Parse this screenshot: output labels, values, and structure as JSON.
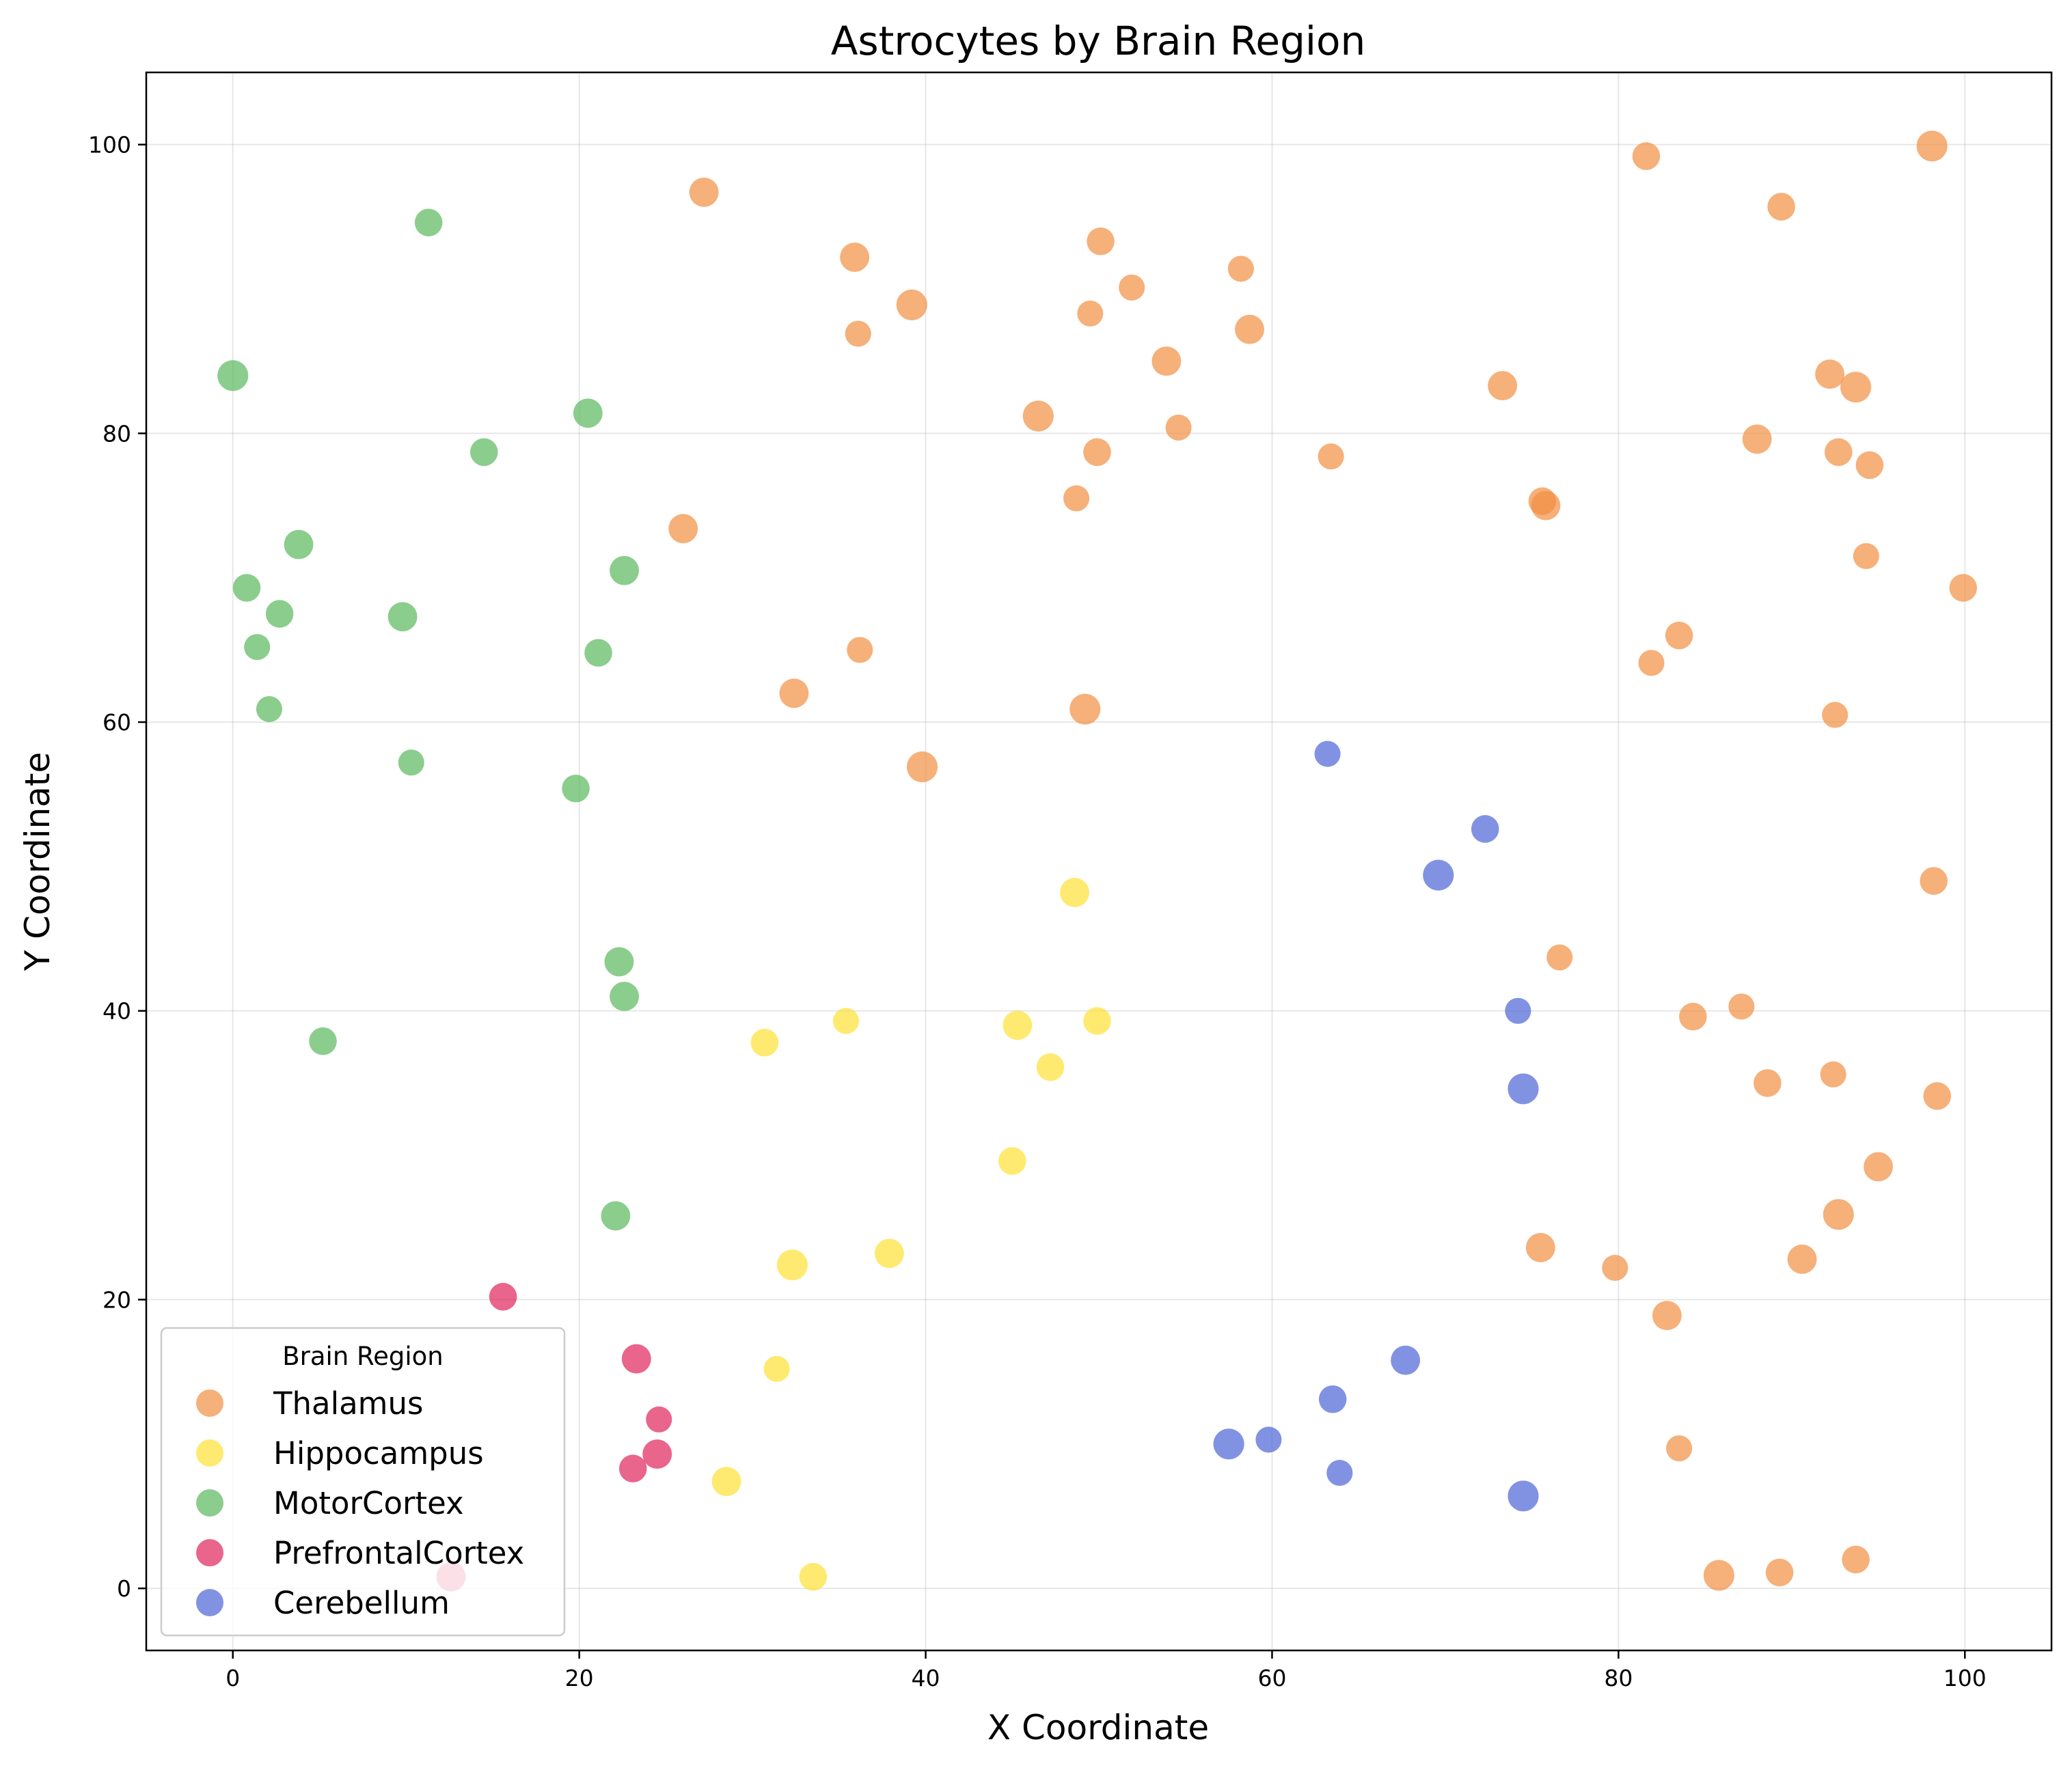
{
  "chart_data": {
    "type": "scatter",
    "title": "Astrocytes by Brain Region",
    "xlabel": "X Coordinate",
    "ylabel": "Y Coordinate",
    "xlim": [
      -5,
      105
    ],
    "ylim": [
      -4.3,
      105
    ],
    "xticks": [
      0,
      20,
      40,
      60,
      80,
      100
    ],
    "yticks": [
      0,
      20,
      40,
      60,
      80,
      100
    ],
    "grid": true,
    "legend": {
      "title": "Brain Region",
      "placement": "lower-left"
    },
    "series": [
      {
        "name": "Thalamus",
        "color": "#f28e42",
        "points": [
          [
            27.2,
            96.7
          ],
          [
            35.9,
            92.2
          ],
          [
            36.1,
            86.9
          ],
          [
            39.2,
            88.9
          ],
          [
            50.1,
            93.3
          ],
          [
            49.5,
            88.3
          ],
          [
            51.9,
            90.1
          ],
          [
            58.2,
            91.4
          ],
          [
            58.7,
            87.2
          ],
          [
            53.9,
            85.0
          ],
          [
            54.6,
            80.4
          ],
          [
            46.5,
            81.2
          ],
          [
            49.9,
            78.7
          ],
          [
            48.7,
            75.5
          ],
          [
            63.4,
            78.4
          ],
          [
            73.3,
            83.3
          ],
          [
            75.6,
            75.3
          ],
          [
            75.8,
            75.0
          ],
          [
            81.6,
            99.2
          ],
          [
            89.4,
            95.7
          ],
          [
            98.1,
            99.9
          ],
          [
            92.2,
            84.1
          ],
          [
            93.7,
            83.2
          ],
          [
            88.0,
            79.6
          ],
          [
            92.7,
            78.7
          ],
          [
            94.5,
            77.8
          ],
          [
            94.3,
            71.5
          ],
          [
            99.9,
            69.3
          ],
          [
            26.0,
            73.4
          ],
          [
            32.4,
            62.0
          ],
          [
            36.2,
            65.0
          ],
          [
            49.2,
            60.9
          ],
          [
            39.8,
            56.9
          ],
          [
            83.5,
            66.0
          ],
          [
            81.9,
            64.1
          ],
          [
            92.5,
            60.5
          ],
          [
            98.2,
            49.0
          ],
          [
            76.6,
            43.7
          ],
          [
            84.3,
            39.6
          ],
          [
            87.1,
            40.3
          ],
          [
            88.6,
            35.0
          ],
          [
            92.4,
            35.6
          ],
          [
            98.4,
            34.1
          ],
          [
            95.0,
            29.2
          ],
          [
            92.7,
            25.9
          ],
          [
            90.6,
            22.8
          ],
          [
            75.5,
            23.6
          ],
          [
            79.8,
            22.2
          ],
          [
            82.8,
            18.9
          ],
          [
            83.5,
            9.7
          ],
          [
            85.8,
            0.9
          ],
          [
            89.3,
            1.1
          ],
          [
            93.7,
            2.0
          ]
        ],
        "sizes": [
          380,
          380,
          300,
          420,
          340,
          300,
          300,
          300,
          380,
          380,
          300,
          420,
          340,
          300,
          300,
          380,
          340,
          380,
          340,
          340,
          420,
          380,
          420,
          380,
          340,
          340,
          300,
          340,
          380,
          380,
          300,
          420,
          420,
          340,
          300,
          300,
          340,
          300,
          340,
          300,
          340,
          300,
          340,
          380,
          420,
          380,
          380,
          300,
          380,
          300,
          420,
          340,
          340
        ]
      },
      {
        "name": "Hippocampus",
        "color": "#ffe135",
        "points": [
          [
            48.6,
            48.2
          ],
          [
            35.4,
            39.3
          ],
          [
            30.7,
            37.8
          ],
          [
            45.3,
            39.0
          ],
          [
            49.9,
            39.3
          ],
          [
            47.2,
            36.1
          ],
          [
            45.0,
            29.6
          ],
          [
            32.3,
            22.4
          ],
          [
            37.9,
            23.2
          ],
          [
            31.4,
            15.2
          ],
          [
            28.5,
            7.4
          ],
          [
            33.5,
            0.8
          ]
        ],
        "sizes": [
          380,
          300,
          340,
          380,
          340,
          340,
          340,
          420,
          380,
          300,
          380,
          340
        ]
      },
      {
        "name": "MotorCortex",
        "color": "#5ab85d",
        "points": [
          [
            11.3,
            94.6
          ],
          [
            0.0,
            84.0
          ],
          [
            20.5,
            81.4
          ],
          [
            14.5,
            78.7
          ],
          [
            3.8,
            72.3
          ],
          [
            22.6,
            70.5
          ],
          [
            0.8,
            69.3
          ],
          [
            2.7,
            67.5
          ],
          [
            9.8,
            67.3
          ],
          [
            1.4,
            65.2
          ],
          [
            21.1,
            64.8
          ],
          [
            2.1,
            60.9
          ],
          [
            10.3,
            57.2
          ],
          [
            19.8,
            55.4
          ],
          [
            22.3,
            43.4
          ],
          [
            22.6,
            41.0
          ],
          [
            5.2,
            37.9
          ],
          [
            22.1,
            25.8
          ]
        ],
        "sizes": [
          340,
          420,
          380,
          340,
          380,
          380,
          340,
          340,
          380,
          300,
          340,
          300,
          300,
          340,
          380,
          380,
          340,
          380
        ]
      },
      {
        "name": "PrefrontalCortex",
        "color": "#e0245a",
        "points": [
          [
            15.6,
            20.2
          ],
          [
            23.3,
            15.9
          ],
          [
            24.6,
            11.7
          ],
          [
            24.5,
            9.3
          ],
          [
            23.1,
            8.3
          ],
          [
            12.6,
            0.8
          ]
        ],
        "sizes": [
          340,
          380,
          300,
          380,
          340,
          380
        ]
      },
      {
        "name": "Cerebellum",
        "color": "#4d64d7",
        "points": [
          [
            63.2,
            57.8
          ],
          [
            72.3,
            52.6
          ],
          [
            69.6,
            49.4
          ],
          [
            74.2,
            40.0
          ],
          [
            74.5,
            34.6
          ],
          [
            67.7,
            15.8
          ],
          [
            63.5,
            13.1
          ],
          [
            59.8,
            10.3
          ],
          [
            57.5,
            10.0
          ],
          [
            63.9,
            8.0
          ],
          [
            74.5,
            6.4
          ]
        ],
        "sizes": [
          300,
          340,
          420,
          300,
          420,
          380,
          340,
          300,
          420,
          300,
          420
        ]
      }
    ]
  }
}
